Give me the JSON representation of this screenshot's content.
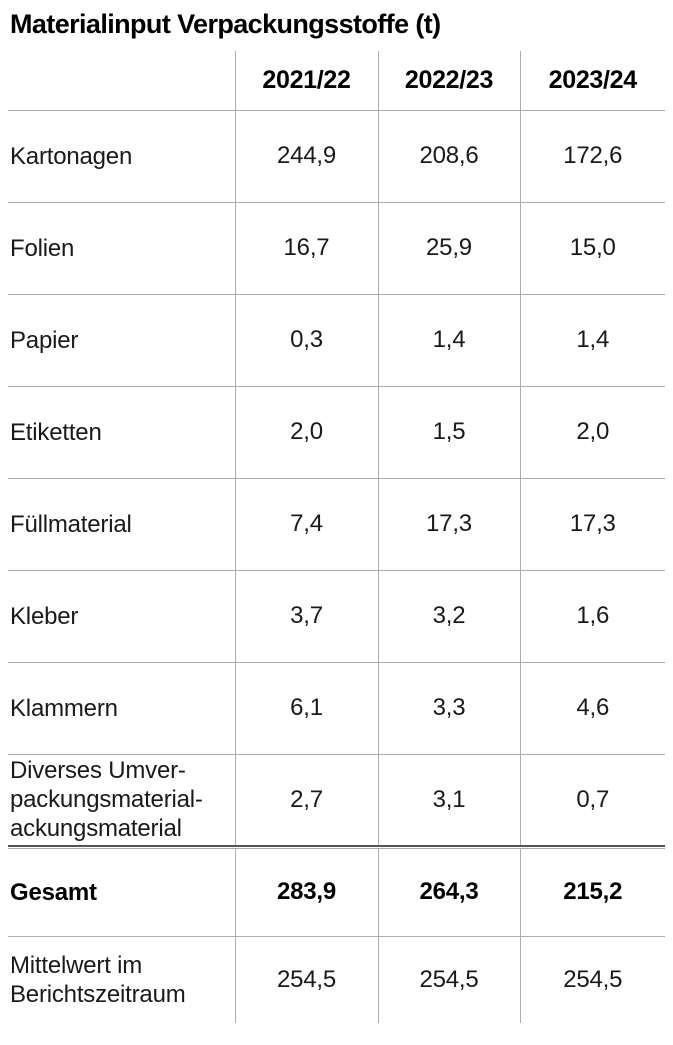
{
  "title": "Materialinput Verpackungsstoffe (t)",
  "table": {
    "columns": [
      "2021/22",
      "2022/23",
      "2023/24"
    ],
    "rows": [
      {
        "label": "Kartonagen",
        "values": [
          "244,9",
          "208,6",
          "172,6"
        ]
      },
      {
        "label": "Folien",
        "values": [
          "16,7",
          "25,9",
          "15,0"
        ]
      },
      {
        "label": "Papier",
        "values": [
          "0,3",
          "1,4",
          "1,4"
        ]
      },
      {
        "label": "Etiketten",
        "values": [
          "2,0",
          "1,5",
          "2,0"
        ]
      },
      {
        "label": "Füllmaterial",
        "values": [
          "7,4",
          "17,3",
          "17,3"
        ]
      },
      {
        "label": "Kleber",
        "values": [
          "3,7",
          "3,2",
          "1,6"
        ]
      },
      {
        "label": "Klammern",
        "values": [
          "6,1",
          "3,3",
          "4,6"
        ]
      },
      {
        "label": "Diverses Umver-\npackungsmaterial-\nackungsmaterial",
        "values": [
          "2,7",
          "3,1",
          "0,7"
        ]
      }
    ],
    "total_row": {
      "label": "Gesamt",
      "values": [
        "283,9",
        "264,3",
        "215,2"
      ]
    },
    "mean_row": {
      "label": "Mittelwert im\nBerichtszeitraum",
      "values": [
        "254,5",
        "254,5",
        "254,5"
      ]
    }
  },
  "colors": {
    "text": "#1a1a1a",
    "grid_line": "#adadad",
    "divider_dark": "#545457"
  }
}
